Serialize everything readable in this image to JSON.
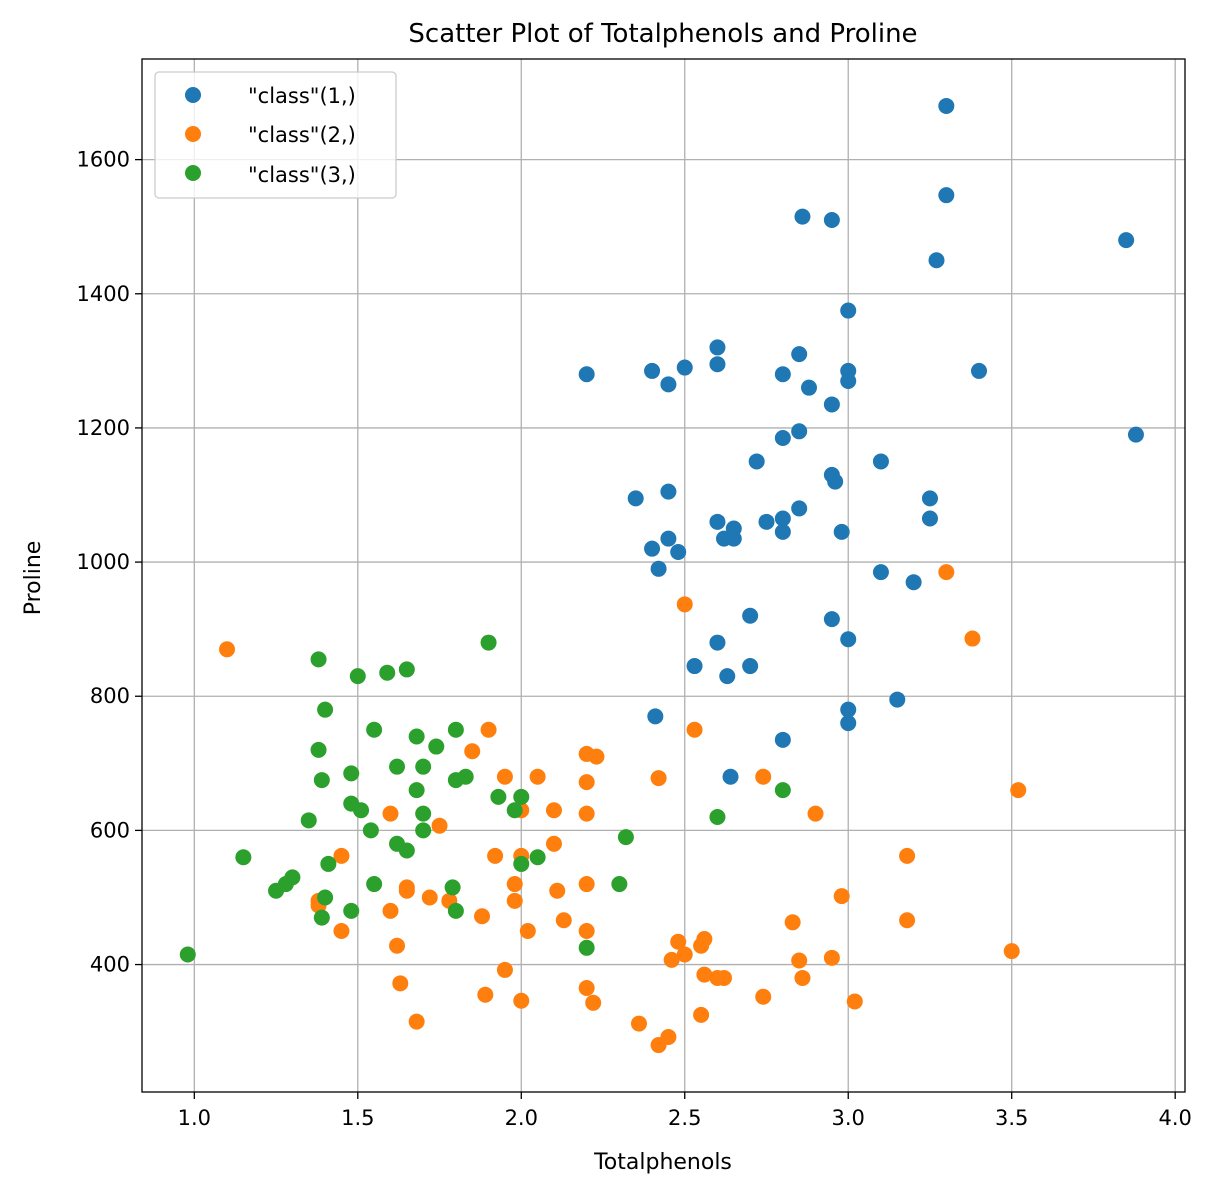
{
  "chart_data": {
    "type": "scatter",
    "title": "Scatter Plot of Totalphenols and Proline",
    "xlabel": "Totalphenols",
    "ylabel": "Proline",
    "xlim": [
      0.84,
      4.03
    ],
    "ylim": [
      210,
      1750
    ],
    "xticks": [
      "1.0",
      "1.5",
      "2.0",
      "2.5",
      "3.0",
      "3.5",
      "4.0"
    ],
    "yticks": [
      "400",
      "600",
      "800",
      "1000",
      "1200",
      "1400",
      "1600"
    ],
    "grid": true,
    "legend_position": "top-left",
    "series": [
      {
        "name": "\"class\"(1,)",
        "color": "#1f77b4",
        "points": [
          [
            3.3,
            1680
          ],
          [
            3.3,
            1547
          ],
          [
            2.86,
            1515
          ],
          [
            2.95,
            1510
          ],
          [
            3.85,
            1480
          ],
          [
            3.27,
            1450
          ],
          [
            3.0,
            1375
          ],
          [
            2.6,
            1320
          ],
          [
            2.85,
            1310
          ],
          [
            2.6,
            1295
          ],
          [
            2.5,
            1290
          ],
          [
            2.4,
            1285
          ],
          [
            3.0,
            1285
          ],
          [
            3.4,
            1285
          ],
          [
            2.2,
            1280
          ],
          [
            2.8,
            1280
          ],
          [
            3.0,
            1270
          ],
          [
            2.45,
            1265
          ],
          [
            2.88,
            1260
          ],
          [
            2.95,
            1235
          ],
          [
            2.85,
            1195
          ],
          [
            3.88,
            1190
          ],
          [
            2.8,
            1185
          ],
          [
            2.72,
            1150
          ],
          [
            3.1,
            1150
          ],
          [
            2.95,
            1130
          ],
          [
            2.96,
            1120
          ],
          [
            2.45,
            1105
          ],
          [
            2.35,
            1095
          ],
          [
            3.25,
            1095
          ],
          [
            2.85,
            1080
          ],
          [
            2.8,
            1065
          ],
          [
            3.25,
            1065
          ],
          [
            2.6,
            1060
          ],
          [
            2.75,
            1060
          ],
          [
            2.65,
            1050
          ],
          [
            2.8,
            1045
          ],
          [
            2.98,
            1045
          ],
          [
            2.45,
            1035
          ],
          [
            2.62,
            1035
          ],
          [
            2.65,
            1035
          ],
          [
            2.4,
            1020
          ],
          [
            2.48,
            1015
          ],
          [
            2.42,
            990
          ],
          [
            3.1,
            985
          ],
          [
            3.2,
            970
          ],
          [
            2.7,
            920
          ],
          [
            2.95,
            915
          ],
          [
            2.6,
            880
          ],
          [
            3.0,
            885
          ],
          [
            2.53,
            845
          ],
          [
            2.7,
            845
          ],
          [
            2.63,
            830
          ],
          [
            3.15,
            795
          ],
          [
            3.0,
            780
          ],
          [
            2.41,
            770
          ],
          [
            3.0,
            760
          ],
          [
            2.8,
            735
          ],
          [
            2.64,
            680
          ]
        ]
      },
      {
        "name": "\"class\"(2,)",
        "color": "#ff7f0e",
        "points": [
          [
            3.3,
            985
          ],
          [
            2.5,
            937
          ],
          [
            3.38,
            886
          ],
          [
            1.1,
            870
          ],
          [
            1.9,
            750
          ],
          [
            2.53,
            750
          ],
          [
            1.85,
            718
          ],
          [
            2.2,
            714
          ],
          [
            2.23,
            710
          ],
          [
            1.95,
            680
          ],
          [
            2.05,
            680
          ],
          [
            2.42,
            678
          ],
          [
            2.74,
            680
          ],
          [
            2.2,
            672
          ],
          [
            3.52,
            660
          ],
          [
            1.75,
            607
          ],
          [
            1.6,
            625
          ],
          [
            2.0,
            630
          ],
          [
            2.1,
            630
          ],
          [
            2.9,
            625
          ],
          [
            2.2,
            625
          ],
          [
            2.1,
            580
          ],
          [
            1.45,
            562
          ],
          [
            1.92,
            562
          ],
          [
            2.0,
            562
          ],
          [
            3.18,
            562
          ],
          [
            1.98,
            520
          ],
          [
            2.2,
            520
          ],
          [
            1.65,
            515
          ],
          [
            1.65,
            510
          ],
          [
            2.11,
            510
          ],
          [
            2.98,
            502
          ],
          [
            1.72,
            500
          ],
          [
            1.38,
            495
          ],
          [
            1.78,
            495
          ],
          [
            1.98,
            495
          ],
          [
            1.38,
            488
          ],
          [
            1.6,
            480
          ],
          [
            1.88,
            472
          ],
          [
            2.13,
            466
          ],
          [
            2.83,
            463
          ],
          [
            3.18,
            466
          ],
          [
            1.45,
            450
          ],
          [
            2.02,
            450
          ],
          [
            2.2,
            450
          ],
          [
            2.56,
            438
          ],
          [
            2.48,
            434
          ],
          [
            2.55,
            428
          ],
          [
            1.62,
            428
          ],
          [
            3.5,
            420
          ],
          [
            2.5,
            415
          ],
          [
            2.46,
            407
          ],
          [
            2.85,
            406
          ],
          [
            2.95,
            410
          ],
          [
            1.95,
            392
          ],
          [
            2.56,
            385
          ],
          [
            2.6,
            380
          ],
          [
            2.62,
            380
          ],
          [
            2.86,
            380
          ],
          [
            1.63,
            372
          ],
          [
            2.2,
            365
          ],
          [
            2.74,
            352
          ],
          [
            1.89,
            355
          ],
          [
            2.0,
            346
          ],
          [
            2.22,
            343
          ],
          [
            3.02,
            345
          ],
          [
            2.55,
            325
          ],
          [
            1.68,
            315
          ],
          [
            2.36,
            312
          ],
          [
            2.45,
            292
          ],
          [
            2.42,
            280
          ]
        ]
      },
      {
        "name": "\"class\"(3,)",
        "color": "#2ca02c",
        "points": [
          [
            1.9,
            880
          ],
          [
            1.38,
            855
          ],
          [
            1.65,
            840
          ],
          [
            1.59,
            835
          ],
          [
            1.5,
            830
          ],
          [
            1.4,
            780
          ],
          [
            1.55,
            750
          ],
          [
            1.8,
            750
          ],
          [
            1.68,
            740
          ],
          [
            1.74,
            725
          ],
          [
            1.38,
            720
          ],
          [
            1.62,
            695
          ],
          [
            1.7,
            695
          ],
          [
            1.48,
            685
          ],
          [
            1.39,
            675
          ],
          [
            1.8,
            675
          ],
          [
            1.83,
            680
          ],
          [
            1.68,
            660
          ],
          [
            2.8,
            660
          ],
          [
            1.93,
            650
          ],
          [
            2.0,
            650
          ],
          [
            1.48,
            640
          ],
          [
            1.51,
            630
          ],
          [
            1.98,
            630
          ],
          [
            1.7,
            625
          ],
          [
            2.6,
            620
          ],
          [
            1.35,
            615
          ],
          [
            1.54,
            600
          ],
          [
            1.7,
            600
          ],
          [
            2.32,
            590
          ],
          [
            1.62,
            580
          ],
          [
            1.65,
            570
          ],
          [
            1.15,
            560
          ],
          [
            2.05,
            560
          ],
          [
            1.41,
            550
          ],
          [
            2.0,
            550
          ],
          [
            1.3,
            530
          ],
          [
            1.55,
            520
          ],
          [
            2.3,
            520
          ],
          [
            1.28,
            520
          ],
          [
            1.79,
            515
          ],
          [
            1.25,
            510
          ],
          [
            1.4,
            500
          ],
          [
            1.48,
            480
          ],
          [
            1.8,
            480
          ],
          [
            1.39,
            470
          ],
          [
            2.2,
            425
          ],
          [
            0.98,
            415
          ]
        ]
      }
    ]
  }
}
